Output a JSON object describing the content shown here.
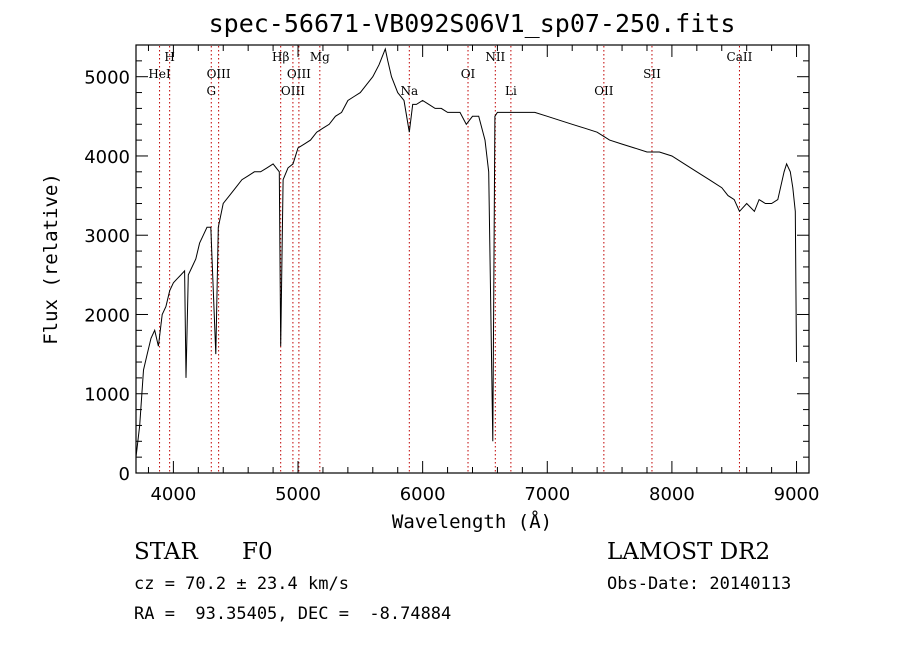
{
  "chart_data": {
    "type": "line",
    "title": "spec-56671-VB092S06V1_sp07-250.fits",
    "xlabel": "Wavelength (Å)",
    "ylabel": "Flux (relative)",
    "xlim": [
      3700,
      9100
    ],
    "ylim": [
      0,
      5400
    ],
    "x_ticks": [
      4000,
      5000,
      6000,
      7000,
      8000,
      9000
    ],
    "y_ticks": [
      0,
      1000,
      2000,
      3000,
      4000,
      5000
    ],
    "x_tick_labels": [
      "4000",
      "5000",
      "6000",
      "7000",
      "8000",
      "9000"
    ],
    "y_tick_labels": [
      "0",
      "1000",
      "2000",
      "3000",
      "4000",
      "5000"
    ],
    "grid": false,
    "line_color": "#000000",
    "marker_color": "#c00000",
    "series": [
      {
        "x": [
          3700,
          3730,
          3760,
          3790,
          3820,
          3850,
          3880,
          3910,
          3940,
          3970,
          4000,
          4030,
          4060,
          4090,
          4101,
          4120,
          4150,
          4180,
          4210,
          4240,
          4270,
          4300,
          4340,
          4360,
          4400,
          4450,
          4500,
          4550,
          4600,
          4650,
          4700,
          4750,
          4800,
          4850,
          4861,
          4880,
          4920,
          4960,
          5000,
          5050,
          5100,
          5150,
          5200,
          5250,
          5300,
          5350,
          5400,
          5450,
          5500,
          5550,
          5600,
          5650,
          5700,
          5720,
          5750,
          5800,
          5850,
          5893,
          5920,
          5950,
          6000,
          6050,
          6100,
          6150,
          6200,
          6250,
          6300,
          6350,
          6400,
          6450,
          6500,
          6530,
          6563,
          6580,
          6600,
          6650,
          6700,
          6800,
          6900,
          7000,
          7100,
          7200,
          7300,
          7400,
          7500,
          7600,
          7700,
          7800,
          7900,
          8000,
          8100,
          8200,
          8300,
          8400,
          8450,
          8500,
          8542,
          8600,
          8662,
          8700,
          8750,
          8800,
          8850,
          8900,
          8920,
          8950,
          8970,
          8990,
          9000
        ],
        "y": [
          200,
          600,
          1300,
          1500,
          1700,
          1800,
          1600,
          2000,
          2100,
          2300,
          2400,
          2450,
          2500,
          2550,
          1200,
          2500,
          2600,
          2700,
          2900,
          3000,
          3100,
          3100,
          1500,
          3100,
          3400,
          3500,
          3600,
          3700,
          3750,
          3800,
          3800,
          3850,
          3900,
          3800,
          1600,
          3700,
          3850,
          3900,
          4100,
          4150,
          4200,
          4300,
          4350,
          4400,
          4500,
          4550,
          4700,
          4750,
          4800,
          4900,
          5000,
          5150,
          5350,
          5200,
          5000,
          4800,
          4700,
          4300,
          4650,
          4650,
          4700,
          4650,
          4600,
          4600,
          4550,
          4550,
          4550,
          4400,
          4500,
          4500,
          4200,
          3800,
          400,
          4500,
          4550,
          4550,
          4550,
          4550,
          4550,
          4500,
          4450,
          4400,
          4350,
          4300,
          4200,
          4150,
          4100,
          4050,
          4050,
          4000,
          3900,
          3800,
          3700,
          3600,
          3500,
          3450,
          3300,
          3400,
          3300,
          3450,
          3400,
          3400,
          3450,
          3800,
          3900,
          3800,
          3600,
          3300,
          1400
        ]
      }
    ],
    "lines": [
      {
        "x": 3889,
        "label": "HeI",
        "row": 2
      },
      {
        "x": 3970,
        "label": "H",
        "row": 1
      },
      {
        "x": 4304,
        "label": "G",
        "row": 3
      },
      {
        "x": 4363,
        "label": "OIII",
        "row": 2
      },
      {
        "x": 4861,
        "label": "Hβ",
        "row": 1
      },
      {
        "x": 4959,
        "label": "OIII",
        "row": 3
      },
      {
        "x": 5007,
        "label": "OIII",
        "row": 2
      },
      {
        "x": 5175,
        "label": "Mg",
        "row": 1
      },
      {
        "x": 5893,
        "label": "Na",
        "row": 3
      },
      {
        "x": 6364,
        "label": "OI",
        "row": 2
      },
      {
        "x": 6583,
        "label": "NII",
        "row": 1
      },
      {
        "x": 6708,
        "label": "Li",
        "row": 3
      },
      {
        "x": 7454,
        "label": "OII",
        "row": 3
      },
      {
        "x": 7840,
        "label": "SII",
        "row": 2
      },
      {
        "x": 8542,
        "label": "CaII",
        "row": 1
      }
    ]
  },
  "info": {
    "class_label": "STAR",
    "subclass_label": "F0",
    "survey_label": "LAMOST DR2",
    "cz_line": "cz = 70.2 ± 23.4 km/s",
    "obs_date_line": "Obs-Date: 20140113",
    "coords_line": "RA =  93.35405, DEC =  -8.74884"
  }
}
